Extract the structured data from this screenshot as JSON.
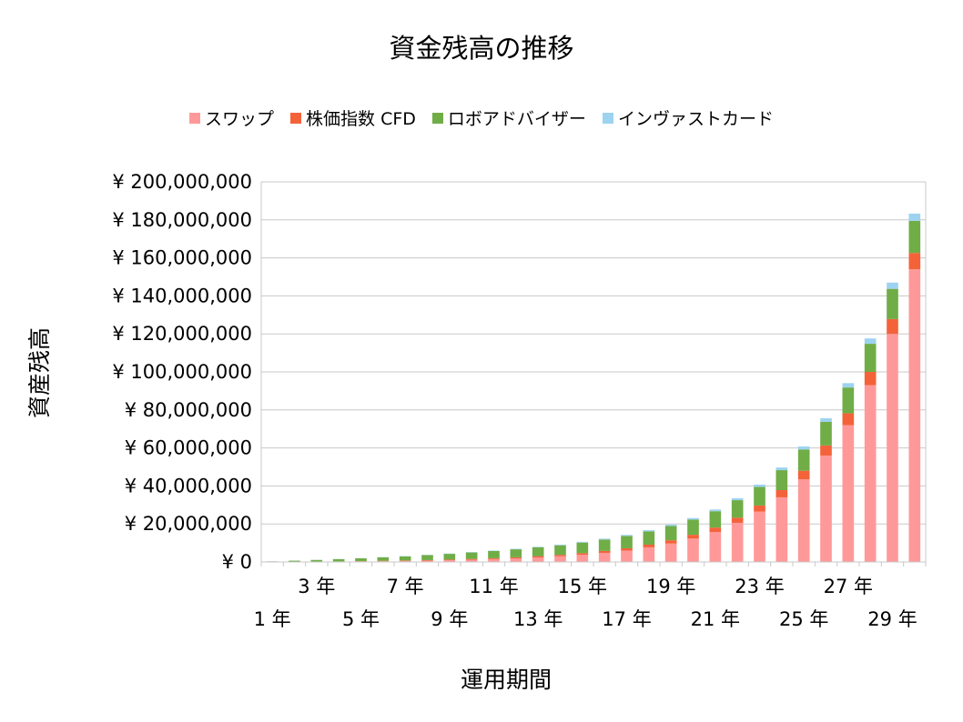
{
  "chart_data": {
    "type": "bar",
    "stacked": true,
    "title": "資金残高の推移",
    "xlabel": "運用期間",
    "ylabel": "資産残高",
    "ylim": [
      0,
      200000000
    ],
    "y_ticks": [
      0,
      20000000,
      40000000,
      60000000,
      80000000,
      100000000,
      120000000,
      140000000,
      160000000,
      180000000,
      200000000
    ],
    "y_tick_labels": [
      "¥ 0",
      "¥ 20,000,000",
      "¥ 40,000,000",
      "¥ 60,000,000",
      "¥ 80,000,000",
      "¥ 100,000,000",
      "¥ 120,000,000",
      "¥ 140,000,000",
      "¥ 160,000,000",
      "¥ 180,000,000",
      "¥ 200,000,000"
    ],
    "categories": [
      "1 年",
      "2 年",
      "3 年",
      "4 年",
      "5 年",
      "6 年",
      "7 年",
      "8 年",
      "9 年",
      "10 年",
      "11 年",
      "12 年",
      "13 年",
      "14 年",
      "15 年",
      "16 年",
      "17 年",
      "18 年",
      "19 年",
      "20 年",
      "21 年",
      "22 年",
      "23 年",
      "24 年",
      "25 年",
      "26 年",
      "27 年",
      "28 年",
      "29 年",
      "30 年"
    ],
    "x_tick_labels_shown": [
      "1 年",
      "3 年",
      "5 年",
      "7 年",
      "9 年",
      "11 年",
      "13 年",
      "15 年",
      "17 年",
      "19 年",
      "21 年",
      "23 年",
      "25 年",
      "27 年",
      "29 年"
    ],
    "legend_position": "top",
    "grid": true,
    "series": [
      {
        "name": "スワップ",
        "color": "#FF9999",
        "values": [
          20000,
          60000,
          120000,
          200000,
          300000,
          420000,
          560000,
          730000,
          940000,
          1200000,
          1500000,
          1900000,
          2400000,
          3000000,
          3800000,
          4800000,
          6000000,
          7700000,
          9700000,
          12300000,
          15800000,
          20600000,
          26500000,
          34000000,
          43500000,
          56000000,
          72000000,
          93000000,
          120000000,
          154000000
        ]
      },
      {
        "name": "株価指数 CFD",
        "color": "#F4623A",
        "values": [
          10000,
          30000,
          50000,
          80000,
          120000,
          160000,
          210000,
          260000,
          320000,
          390000,
          460000,
          550000,
          650000,
          760000,
          880000,
          1000000,
          1200000,
          1400000,
          1700000,
          2000000,
          2300000,
          2700000,
          3200000,
          3800000,
          4500000,
          5300000,
          6200000,
          7000000,
          7800000,
          8600000
        ]
      },
      {
        "name": "ロボアドバイザー",
        "color": "#70AD47",
        "values": [
          300000,
          600000,
          900000,
          1200000,
          1500000,
          1900000,
          2200000,
          2600000,
          3000000,
          3400000,
          3800000,
          4200000,
          4600000,
          5000000,
          5500000,
          6000000,
          6500000,
          7000000,
          7500000,
          8000000,
          8600000,
          9200000,
          9800000,
          10500000,
          11200000,
          12400000,
          13600000,
          14800000,
          15900000,
          16900000
        ]
      },
      {
        "name": "インヴァストカード",
        "color": "#9DD3F0",
        "values": [
          10000,
          20000,
          30000,
          50000,
          70000,
          90000,
          110000,
          140000,
          170000,
          200000,
          240000,
          280000,
          320000,
          370000,
          420000,
          480000,
          550000,
          620000,
          700000,
          800000,
          900000,
          1000000,
          1200000,
          1400000,
          1600000,
          1900000,
          2300000,
          2800000,
          3300000,
          3800000
        ]
      }
    ]
  }
}
